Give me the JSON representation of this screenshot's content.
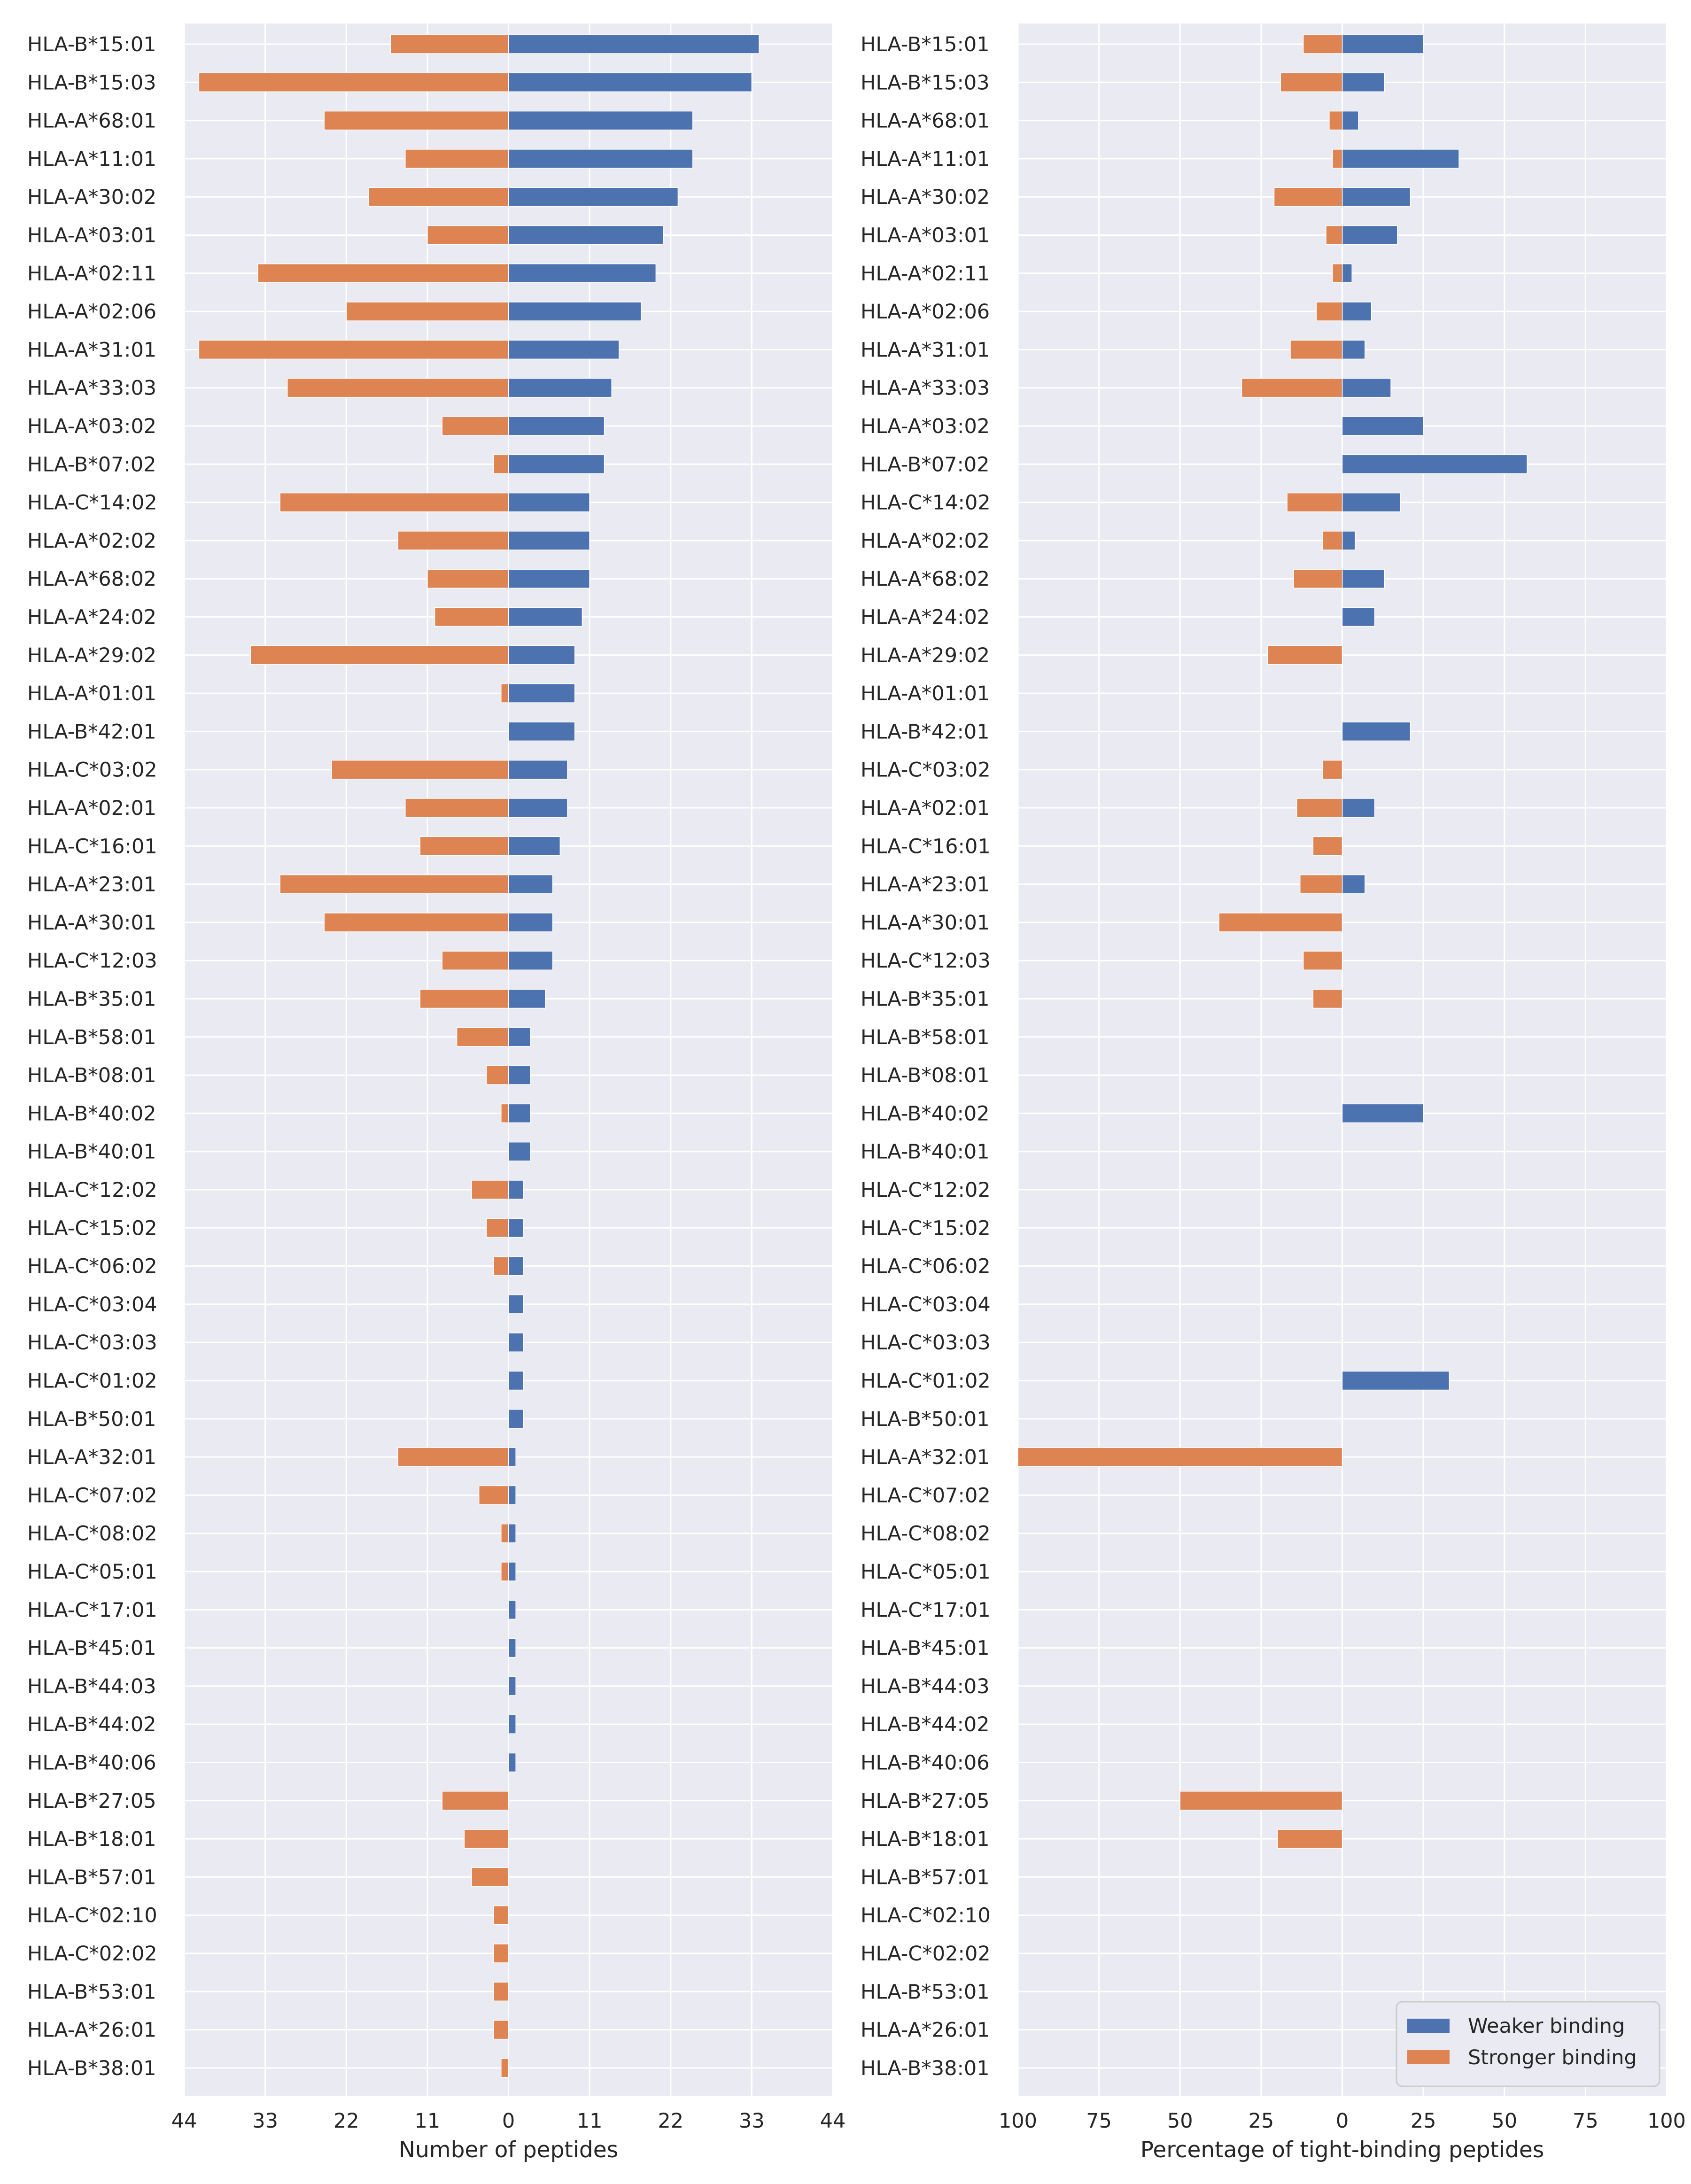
{
  "chart_data": [
    {
      "type": "bar",
      "orientation": "horizontal-diverging",
      "xlabel": "Number of peptides",
      "xticks": [
        -44,
        -33,
        -22,
        -11,
        0,
        11,
        22,
        33,
        44
      ],
      "xticklabels": [
        "44",
        "33",
        "22",
        "11",
        "0",
        "11",
        "22",
        "33",
        "44"
      ],
      "xlim": [
        -44,
        44
      ],
      "grid": true,
      "categories": [
        "HLA-B*15:01",
        "HLA-B*15:03",
        "HLA-A*68:01",
        "HLA-A*11:01",
        "HLA-A*30:02",
        "HLA-A*03:01",
        "HLA-A*02:11",
        "HLA-A*02:06",
        "HLA-A*31:01",
        "HLA-A*33:03",
        "HLA-A*03:02",
        "HLA-B*07:02",
        "HLA-C*14:02",
        "HLA-A*02:02",
        "HLA-A*68:02",
        "HLA-A*24:02",
        "HLA-A*29:02",
        "HLA-A*01:01",
        "HLA-B*42:01",
        "HLA-C*03:02",
        "HLA-A*02:01",
        "HLA-C*16:01",
        "HLA-A*23:01",
        "HLA-A*30:01",
        "HLA-C*12:03",
        "HLA-B*35:01",
        "HLA-B*58:01",
        "HLA-B*08:01",
        "HLA-B*40:02",
        "HLA-B*40:01",
        "HLA-C*12:02",
        "HLA-C*15:02",
        "HLA-C*06:02",
        "HLA-C*03:04",
        "HLA-C*03:03",
        "HLA-C*01:02",
        "HLA-B*50:01",
        "HLA-A*32:01",
        "HLA-C*07:02",
        "HLA-C*08:02",
        "HLA-C*05:01",
        "HLA-C*17:01",
        "HLA-B*45:01",
        "HLA-B*44:03",
        "HLA-B*44:02",
        "HLA-B*40:06",
        "HLA-B*27:05",
        "HLA-B*18:01",
        "HLA-B*57:01",
        "HLA-C*02:10",
        "HLA-C*02:02",
        "HLA-B*53:01",
        "HLA-A*26:01",
        "HLA-B*38:01"
      ],
      "series": [
        {
          "name": "Weaker binding",
          "color": "#4c72b0",
          "values": [
            34,
            33,
            25,
            25,
            23,
            21,
            20,
            18,
            15,
            14,
            13,
            13,
            11,
            11,
            11,
            10,
            9,
            9,
            9,
            8,
            8,
            7,
            6,
            6,
            6,
            5,
            3,
            3,
            3,
            3,
            2,
            2,
            2,
            2,
            2,
            2,
            2,
            1,
            1,
            1,
            1,
            1,
            1,
            1,
            1,
            1,
            0,
            0,
            0,
            0,
            0,
            0,
            0,
            0
          ]
        },
        {
          "name": "Stronger binding",
          "color": "#dd8452",
          "values": [
            16,
            42,
            25,
            14,
            19,
            11,
            34,
            22,
            42,
            30,
            9,
            2,
            31,
            15,
            11,
            10,
            35,
            1,
            0,
            24,
            14,
            12,
            31,
            25,
            9,
            12,
            7,
            3,
            1,
            0,
            5,
            3,
            2,
            0,
            0,
            0,
            0,
            15,
            4,
            1,
            1,
            0,
            0,
            0,
            0,
            0,
            9,
            6,
            5,
            2,
            2,
            2,
            2,
            1
          ]
        }
      ]
    },
    {
      "type": "bar",
      "orientation": "horizontal-diverging",
      "xlabel": "Percentage of tight-binding peptides",
      "xticks": [
        -100,
        -75,
        -50,
        -25,
        0,
        25,
        50,
        75,
        100
      ],
      "xticklabels": [
        "100",
        "75",
        "50",
        "25",
        "0",
        "25",
        "50",
        "75",
        "100"
      ],
      "xlim": [
        -100,
        100
      ],
      "grid": true,
      "legend": {
        "position": "lower-right",
        "entries": [
          "Weaker binding",
          "Stronger binding"
        ]
      },
      "categories": [
        "HLA-B*15:01",
        "HLA-B*15:03",
        "HLA-A*68:01",
        "HLA-A*11:01",
        "HLA-A*30:02",
        "HLA-A*03:01",
        "HLA-A*02:11",
        "HLA-A*02:06",
        "HLA-A*31:01",
        "HLA-A*33:03",
        "HLA-A*03:02",
        "HLA-B*07:02",
        "HLA-C*14:02",
        "HLA-A*02:02",
        "HLA-A*68:02",
        "HLA-A*24:02",
        "HLA-A*29:02",
        "HLA-A*01:01",
        "HLA-B*42:01",
        "HLA-C*03:02",
        "HLA-A*02:01",
        "HLA-C*16:01",
        "HLA-A*23:01",
        "HLA-A*30:01",
        "HLA-C*12:03",
        "HLA-B*35:01",
        "HLA-B*58:01",
        "HLA-B*08:01",
        "HLA-B*40:02",
        "HLA-B*40:01",
        "HLA-C*12:02",
        "HLA-C*15:02",
        "HLA-C*06:02",
        "HLA-C*03:04",
        "HLA-C*03:03",
        "HLA-C*01:02",
        "HLA-B*50:01",
        "HLA-A*32:01",
        "HLA-C*07:02",
        "HLA-C*08:02",
        "HLA-C*05:01",
        "HLA-C*17:01",
        "HLA-B*45:01",
        "HLA-B*44:03",
        "HLA-B*44:02",
        "HLA-B*40:06",
        "HLA-B*27:05",
        "HLA-B*18:01",
        "HLA-B*57:01",
        "HLA-C*02:10",
        "HLA-C*02:02",
        "HLA-B*53:01",
        "HLA-A*26:01",
        "HLA-B*38:01"
      ],
      "series": [
        {
          "name": "Weaker binding",
          "color": "#4c72b0",
          "values": [
            25,
            13,
            5,
            36,
            21,
            17,
            3,
            9,
            7,
            15,
            25,
            57,
            18,
            4,
            13,
            10,
            0,
            0,
            21,
            0,
            10,
            0,
            7,
            0,
            0,
            0,
            0,
            0,
            25,
            0,
            0,
            0,
            0,
            0,
            0,
            33,
            0,
            0,
            0,
            0,
            0,
            0,
            0,
            0,
            0,
            0,
            0,
            0,
            0,
            0,
            0,
            0,
            0,
            0
          ]
        },
        {
          "name": "Stronger binding",
          "color": "#dd8452",
          "values": [
            12,
            19,
            4,
            3,
            21,
            5,
            3,
            8,
            16,
            31,
            0,
            0,
            17,
            6,
            15,
            0,
            23,
            0,
            0,
            6,
            14,
            9,
            13,
            38,
            12,
            9,
            0,
            0,
            0,
            0,
            0,
            0,
            0,
            0,
            0,
            0,
            0,
            100,
            0,
            0,
            0,
            0,
            0,
            0,
            0,
            0,
            50,
            20,
            0,
            0,
            0,
            0,
            0,
            0
          ]
        }
      ]
    }
  ]
}
